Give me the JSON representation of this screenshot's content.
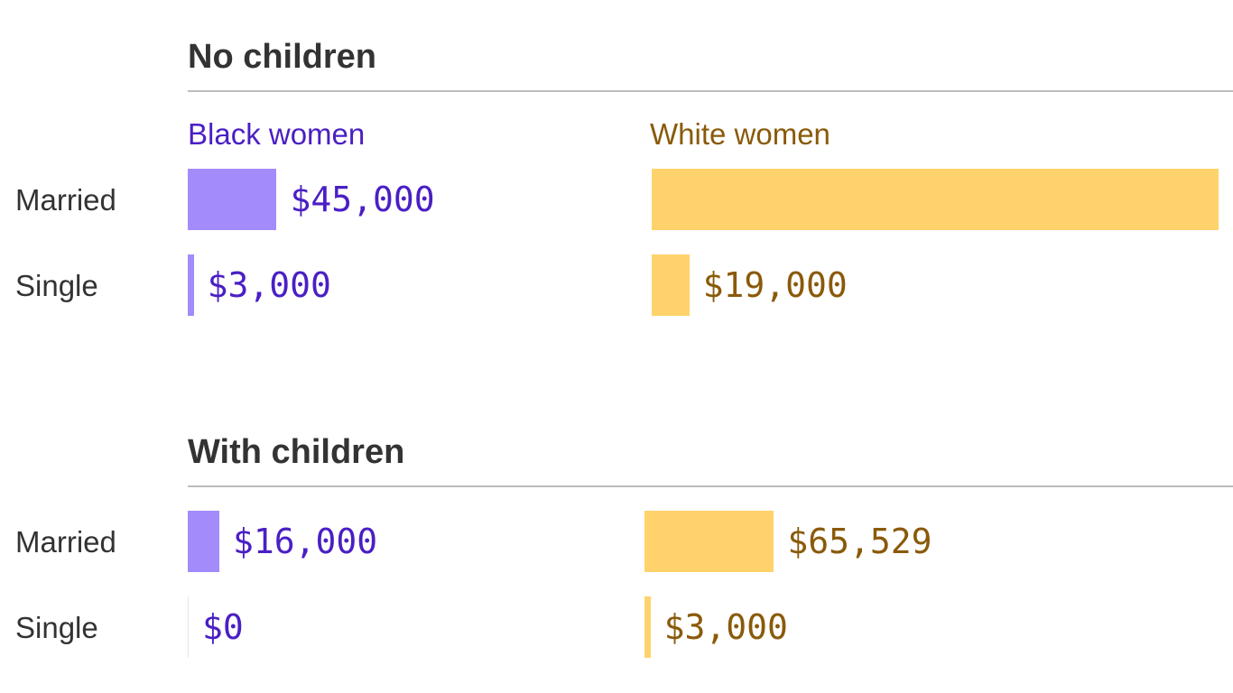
{
  "colors": {
    "black_women_bar": "#a48bfb",
    "black_women_text": "#4a1fc4",
    "white_women_bar": "#ffd26b",
    "white_women_text": "#8a5a0a"
  },
  "chart_data": [
    {
      "type": "bar",
      "orientation": "horizontal",
      "title": "No children",
      "categories": [
        "Married",
        "Single"
      ],
      "series": [
        {
          "name": "Black women",
          "values": [
            45000,
            3000
          ],
          "labels": [
            "$45,000",
            "$3,000"
          ]
        },
        {
          "name": "White women",
          "values": [
            287000,
            19000
          ],
          "labels": [
            "",
            "$19,000"
          ]
        }
      ]
    },
    {
      "type": "bar",
      "orientation": "horizontal",
      "title": "With children",
      "categories": [
        "Married",
        "Single"
      ],
      "series": [
        {
          "name": "Black women",
          "values": [
            16000,
            0
          ],
          "labels": [
            "$16,000",
            "$0"
          ]
        },
        {
          "name": "White women",
          "values": [
            65529,
            3000
          ],
          "labels": [
            "$65,529",
            "$3,000"
          ]
        }
      ]
    }
  ]
}
